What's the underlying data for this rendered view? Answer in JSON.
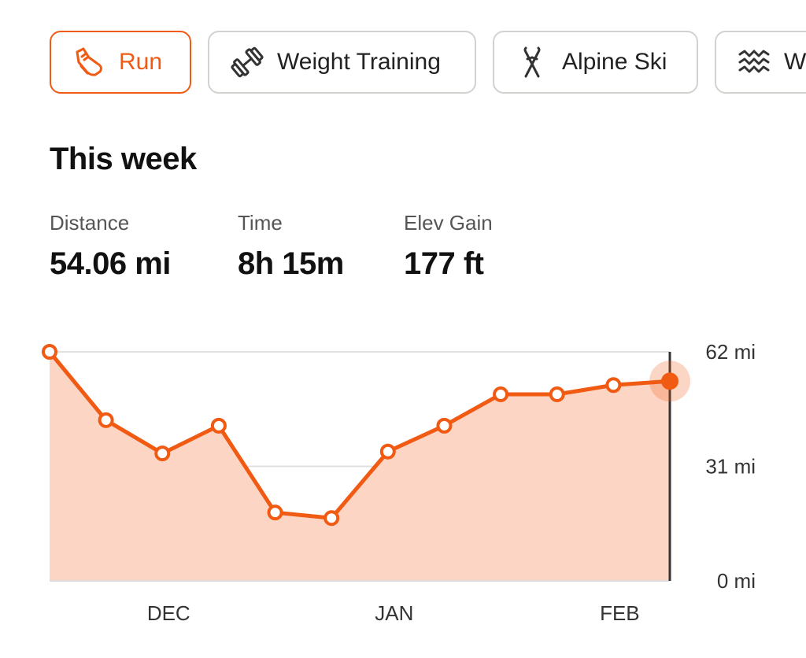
{
  "tabs": [
    {
      "label": "Run",
      "icon": "running-shoe-icon",
      "active": true
    },
    {
      "label": "Weight Training",
      "icon": "dumbbell-icon",
      "active": false
    },
    {
      "label": "Alpine Ski",
      "icon": "skis-icon",
      "active": false
    },
    {
      "label": "W",
      "icon": "waves-icon",
      "active": false
    }
  ],
  "section_title": "This week",
  "stats": [
    {
      "label": "Distance",
      "value": "54.06 mi"
    },
    {
      "label": "Time",
      "value": "8h 15m"
    },
    {
      "label": "Elev Gain",
      "value": "177 ft"
    }
  ],
  "colors": {
    "accent": "#f05a13",
    "area_fill": "#fdd5c4",
    "tab_border": "#d2d2cf",
    "grid": "#e0e0e0"
  },
  "chart_data": {
    "type": "area",
    "title": "",
    "xlabel": "",
    "ylabel": "",
    "unit": "mi",
    "x_ticks": [
      {
        "label": "DEC",
        "index": 2
      },
      {
        "label": "JAN",
        "index": 6
      },
      {
        "label": "FEB",
        "index": 10
      }
    ],
    "y_ticks": [
      {
        "label": "62 mi",
        "value": 62
      },
      {
        "label": "31 mi",
        "value": 31
      },
      {
        "label": "0 mi",
        "value": 0
      }
    ],
    "ylim": [
      0,
      62
    ],
    "grid": true,
    "series": [
      {
        "values": [
          62,
          43.5,
          34.5,
          42,
          18.5,
          17,
          35,
          42,
          50.5,
          50.5,
          53,
          54.06
        ],
        "highlight_index": 11
      }
    ]
  }
}
